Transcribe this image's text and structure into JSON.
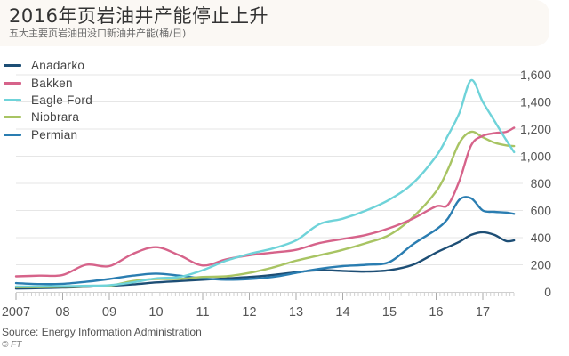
{
  "header": {
    "title": "2016年页岩油井产能停止上升",
    "subtitle": "五大主要页岩油田没口新油井产能(桶/日)"
  },
  "footer": {
    "source": "Source: Energy Information Administration",
    "copyright": "© FT"
  },
  "colors": {
    "Anadarko": "#1d4e75",
    "Bakken": "#d6638a",
    "Eagle Ford": "#6fd3d9",
    "Niobrara": "#a8c463",
    "Permian": "#2a7db1",
    "grid": "#e6e6e6",
    "axis_text": "#555555"
  },
  "chart_data": {
    "type": "line",
    "title": "2016年页岩油井产能停止上升",
    "subtitle": "五大主要页岩油田没口新油井产能(桶/日)",
    "xlabel": "",
    "ylabel": "桶/日",
    "ylim": [
      0,
      1600
    ],
    "yticks": [
      0,
      200,
      400,
      600,
      800,
      1000,
      1200,
      1400,
      1600
    ],
    "ytick_labels": [
      "0",
      "200",
      "400",
      "600",
      "800",
      "1,000",
      "1,200",
      "1,400",
      "1,600"
    ],
    "y_axis_position": "right",
    "xlim": [
      2007.0,
      2017.67
    ],
    "xticks": [
      2007,
      2008,
      2009,
      2010,
      2011,
      2012,
      2013,
      2014,
      2015,
      2016,
      2017
    ],
    "xtick_labels": [
      "2007",
      "08",
      "09",
      "10",
      "11",
      "12",
      "13",
      "14",
      "15",
      "16",
      "17"
    ],
    "grid": true,
    "legend_position": "top-left",
    "source": "Source: Energy Information Administration",
    "x": [
      2007.0,
      2007.5,
      2008.0,
      2008.5,
      2009.0,
      2009.5,
      2010.0,
      2010.5,
      2011.0,
      2011.5,
      2012.0,
      2012.5,
      2013.0,
      2013.5,
      2014.0,
      2014.5,
      2015.0,
      2015.5,
      2016.0,
      2016.25,
      2016.5,
      2016.75,
      2017.0,
      2017.25,
      2017.5,
      2017.67
    ],
    "series": [
      {
        "name": "Anadarko",
        "values": [
          25,
          28,
          32,
          38,
          45,
          55,
          70,
          80,
          90,
          100,
          110,
          125,
          145,
          160,
          155,
          150,
          160,
          200,
          290,
          330,
          370,
          420,
          440,
          420,
          375,
          380
        ]
      },
      {
        "name": "Bakken",
        "values": [
          115,
          120,
          125,
          200,
          190,
          280,
          330,
          270,
          195,
          240,
          270,
          290,
          310,
          360,
          390,
          420,
          470,
          540,
          630,
          640,
          820,
          1080,
          1150,
          1170,
          1180,
          1210
        ]
      },
      {
        "name": "Eagle Ford",
        "values": [
          40,
          40,
          42,
          45,
          50,
          70,
          100,
          110,
          160,
          230,
          280,
          320,
          380,
          500,
          540,
          600,
          680,
          800,
          1000,
          1150,
          1320,
          1560,
          1400,
          1260,
          1120,
          1030
        ]
      },
      {
        "name": "Niobrara",
        "values": [
          35,
          35,
          38,
          40,
          45,
          80,
          95,
          95,
          110,
          115,
          140,
          180,
          230,
          270,
          310,
          360,
          420,
          550,
          740,
          900,
          1100,
          1180,
          1140,
          1100,
          1080,
          1075
        ]
      },
      {
        "name": "Permian",
        "values": [
          65,
          58,
          60,
          75,
          95,
          120,
          135,
          120,
          100,
          90,
          95,
          110,
          140,
          170,
          190,
          200,
          220,
          350,
          460,
          540,
          680,
          690,
          600,
          590,
          585,
          575
        ]
      }
    ]
  }
}
